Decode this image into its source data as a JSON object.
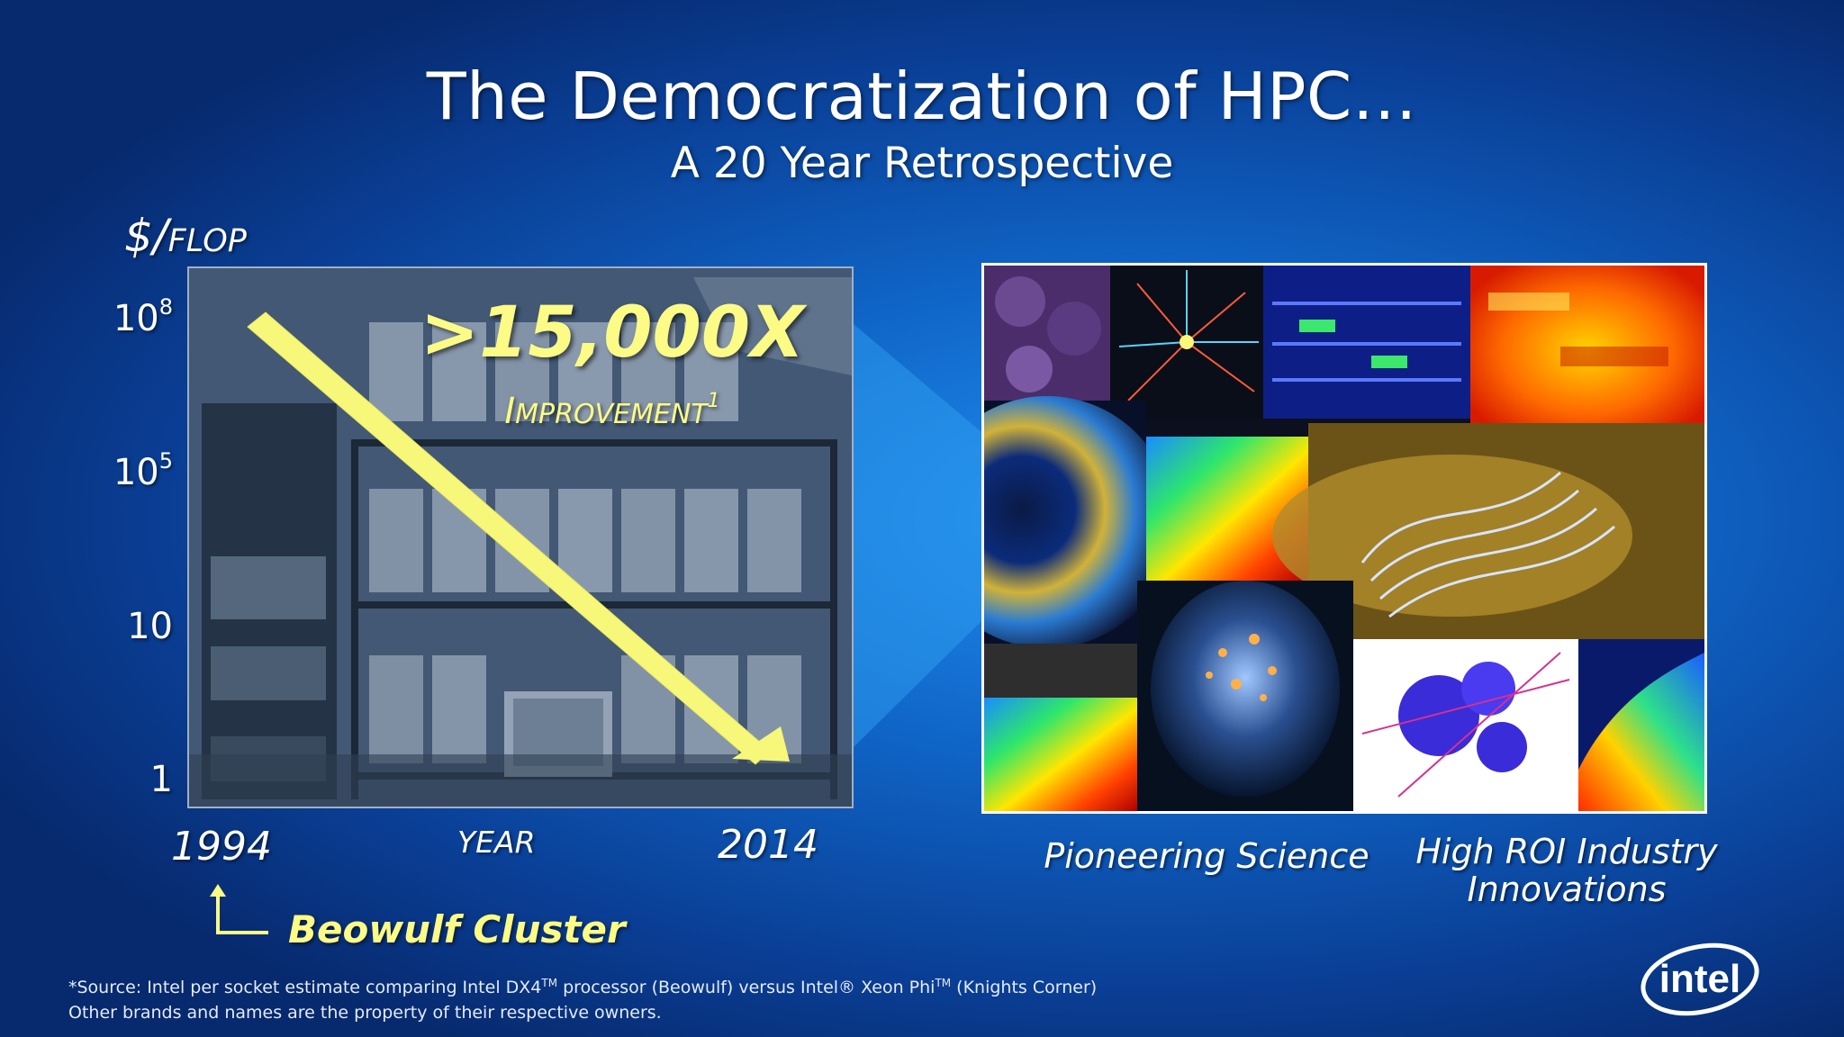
{
  "slide": {
    "title": "The Democratization of HPC…",
    "subtitle": "A 20 Year Retrospective",
    "y_unit_symbol": "$/",
    "y_unit_word": "FLOP",
    "y_ticks": [
      {
        "base": "10",
        "exp": "8"
      },
      {
        "base": "10",
        "exp": "5"
      },
      {
        "base": "10",
        "exp": ""
      },
      {
        "base": "1",
        "exp": ""
      }
    ],
    "improvement_factor": ">15,000X",
    "improvement_first": "I",
    "improvement_rest": "MPROVEMENT",
    "improvement_note": "1",
    "year_start": "1994",
    "year_axis_label": "YEAR",
    "year_end": "2014",
    "cluster_label": "Beowulf Cluster",
    "caption_left": "Pioneering Science",
    "caption_right_line1": "High ROI Industry",
    "caption_right_line2": "Innovations",
    "logo_text": "intel",
    "colors": {
      "highlight": "#fbfb86",
      "text": "#ffffff",
      "background": "#0f64c6"
    }
  },
  "footnote": {
    "line1_a": "*Source: Intel per socket estimate comparing Intel DX4",
    "line1_tm1": "TM",
    "line1_b": " processor (Beowulf) versus Intel® Xeon Phi",
    "line1_tm2": "TM",
    "line1_c": " (Knights Corner)",
    "line2": "Other brands and names are the property of their respective owners."
  }
}
